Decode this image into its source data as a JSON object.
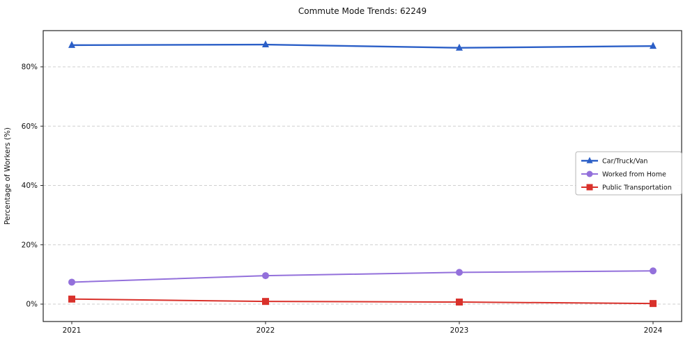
{
  "chart_data": {
    "type": "line",
    "title": "Commute Mode Trends: 62249",
    "xlabel": "",
    "ylabel": "Percentage of Workers (%)",
    "categories": [
      "2021",
      "2022",
      "2023",
      "2024"
    ],
    "series": [
      {
        "name": "Car/Truck/Van",
        "values": [
          87.3,
          87.5,
          86.4,
          87.0
        ],
        "color": "#2b5fc7",
        "marker": "triangle",
        "line_width": 2.4
      },
      {
        "name": "Worked from Home",
        "values": [
          7.4,
          9.6,
          10.7,
          11.2
        ],
        "color": "#9370db",
        "marker": "circle",
        "line_width": 2.0
      },
      {
        "name": "Public Transportation",
        "values": [
          1.7,
          0.9,
          0.7,
          0.2
        ],
        "color": "#d9312b",
        "marker": "square",
        "line_width": 2.0
      }
    ],
    "yticks": [
      0,
      20,
      40,
      60,
      80
    ],
    "ytick_labels": [
      "0%",
      "20%",
      "40%",
      "60%",
      "80%"
    ],
    "ylim": [
      -5.6,
      92.2
    ],
    "grid": true,
    "grid_style": "dashed",
    "legend_position": "right-middle",
    "colors": {
      "grid": "#cfcfcf",
      "axis": "#262626",
      "text": "#111111",
      "legend_border": "#b5b5b5",
      "background": "#ffffff"
    }
  }
}
